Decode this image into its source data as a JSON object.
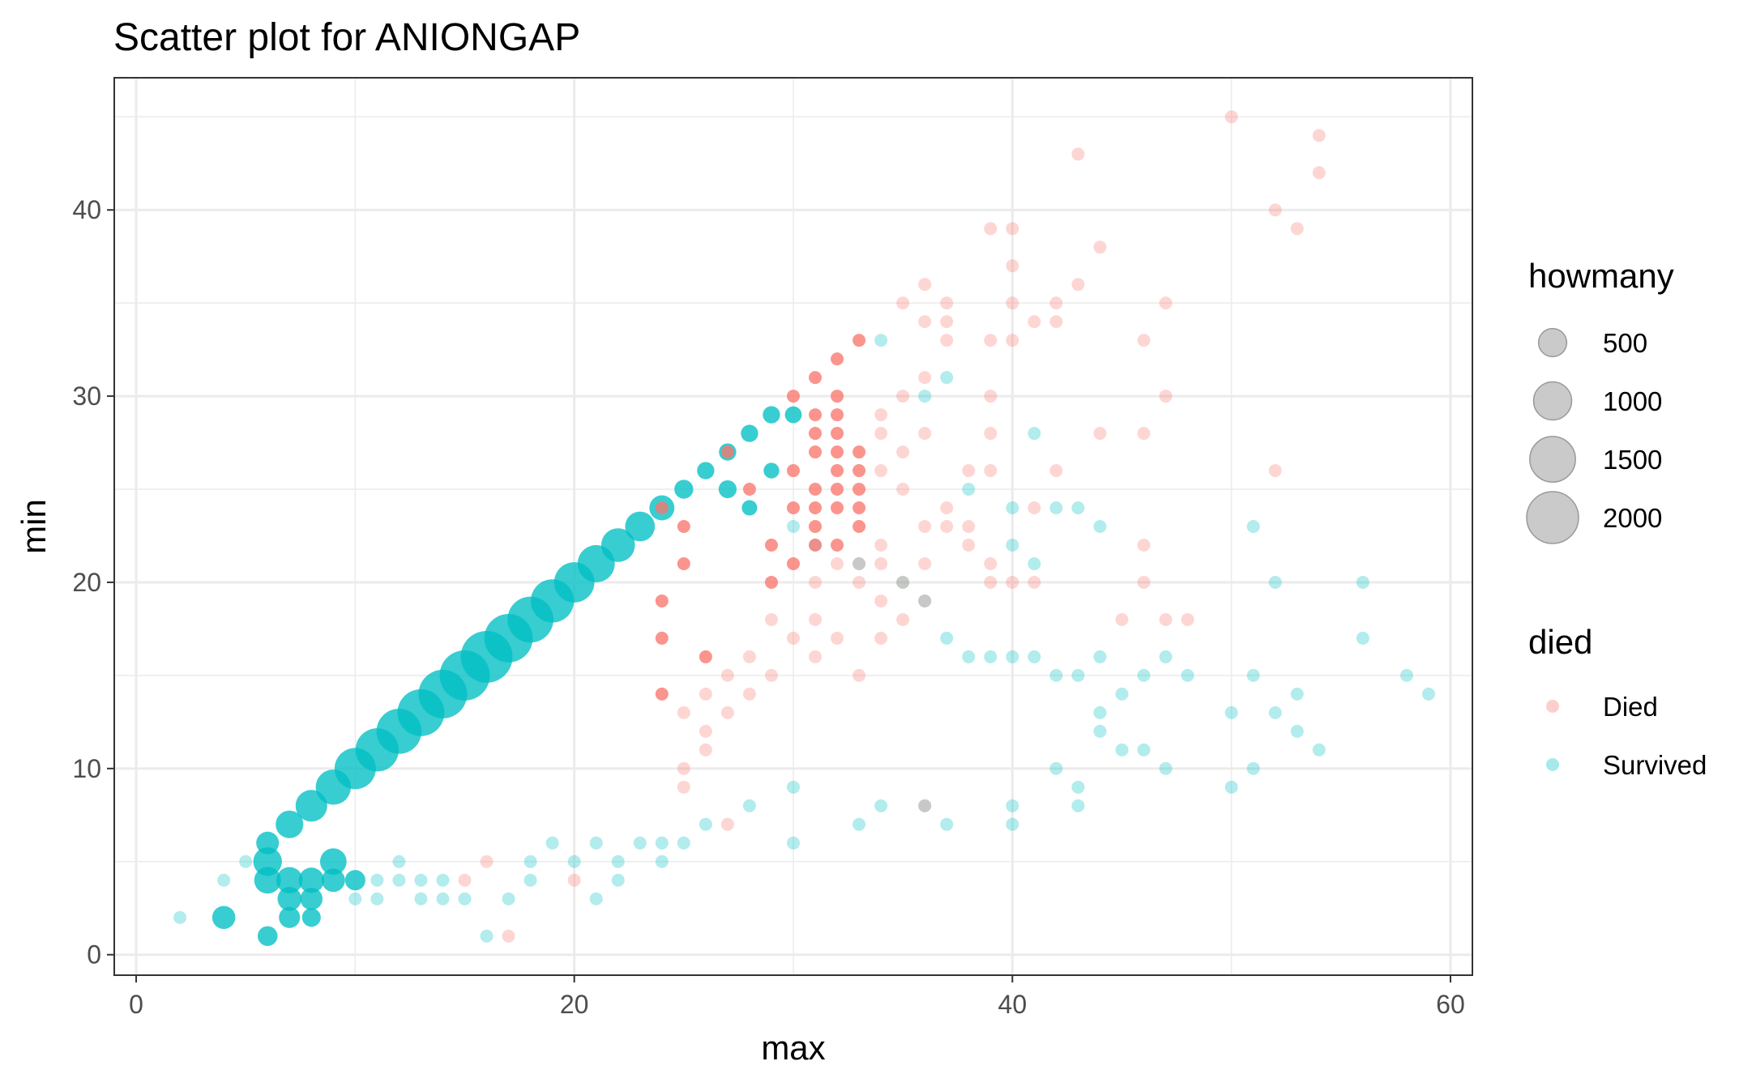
{
  "chart_data": {
    "type": "scatter",
    "title": "Scatter plot for ANIONGAP",
    "xlabel": "max",
    "ylabel": "min",
    "xlim": [
      -1,
      61
    ],
    "ylim": [
      -1.1,
      47.1
    ],
    "x_ticks": [
      0,
      20,
      40,
      60
    ],
    "y_ticks": [
      0,
      10,
      20,
      30,
      40
    ],
    "grid": true,
    "legend_position": "right",
    "colors": {
      "Died": "#F8766D",
      "Survived": "#00BFC4",
      "size_legend": "#B3B3B3"
    },
    "size_legend": {
      "title": "howmany",
      "entries": [
        {
          "label": "500",
          "value": 500
        },
        {
          "label": "1000",
          "value": 1000
        },
        {
          "label": "1500",
          "value": 1500
        },
        {
          "label": "2000",
          "value": 2000
        }
      ]
    },
    "color_legend": {
      "title": "died",
      "entries": [
        {
          "label": "Died",
          "color": "#F8766D"
        },
        {
          "label": "Survived",
          "color": "#00BFC4"
        }
      ]
    },
    "series": [
      {
        "name": "Died",
        "points": [
          [
            50,
            45
          ],
          [
            54,
            44
          ],
          [
            43,
            43
          ],
          [
            54,
            42
          ],
          [
            52,
            40
          ],
          [
            39,
            39
          ],
          [
            40,
            39
          ],
          [
            53,
            39
          ],
          [
            44,
            38
          ],
          [
            40,
            37
          ],
          [
            36,
            36
          ],
          [
            43,
            36
          ],
          [
            35,
            35
          ],
          [
            37,
            35
          ],
          [
            40,
            35
          ],
          [
            42,
            35
          ],
          [
            47,
            35
          ],
          [
            36,
            34
          ],
          [
            37,
            34
          ],
          [
            41,
            34
          ],
          [
            42,
            34
          ],
          [
            33,
            33
          ],
          [
            37,
            33
          ],
          [
            39,
            33
          ],
          [
            40,
            33
          ],
          [
            46,
            33
          ],
          [
            32,
            32
          ],
          [
            31,
            31
          ],
          [
            36,
            31
          ],
          [
            30,
            30
          ],
          [
            32,
            30
          ],
          [
            35,
            30
          ],
          [
            39,
            30
          ],
          [
            47,
            30
          ],
          [
            31,
            29
          ],
          [
            32,
            29
          ],
          [
            34,
            29
          ],
          [
            31,
            28
          ],
          [
            32,
            28
          ],
          [
            34,
            28
          ],
          [
            36,
            28
          ],
          [
            39,
            28
          ],
          [
            44,
            28
          ],
          [
            46,
            28
          ],
          [
            27,
            27
          ],
          [
            31,
            27
          ],
          [
            32,
            27
          ],
          [
            33,
            27
          ],
          [
            35,
            27
          ],
          [
            30,
            26
          ],
          [
            32,
            26
          ],
          [
            33,
            26
          ],
          [
            34,
            26
          ],
          [
            38,
            26
          ],
          [
            39,
            26
          ],
          [
            42,
            26
          ],
          [
            52,
            26
          ],
          [
            28,
            25
          ],
          [
            31,
            25
          ],
          [
            32,
            25
          ],
          [
            33,
            25
          ],
          [
            35,
            25
          ],
          [
            24,
            24
          ],
          [
            30,
            24
          ],
          [
            31,
            24
          ],
          [
            32,
            24
          ],
          [
            33,
            24
          ],
          [
            37,
            24
          ],
          [
            41,
            24
          ],
          [
            25,
            23
          ],
          [
            31,
            23
          ],
          [
            33,
            23
          ],
          [
            36,
            23
          ],
          [
            37,
            23
          ],
          [
            38,
            23
          ],
          [
            29,
            22
          ],
          [
            31,
            22
          ],
          [
            32,
            22
          ],
          [
            34,
            22
          ],
          [
            38,
            22
          ],
          [
            46,
            22
          ],
          [
            25,
            21
          ],
          [
            30,
            21
          ],
          [
            32,
            21
          ],
          [
            33,
            21
          ],
          [
            34,
            21
          ],
          [
            36,
            21
          ],
          [
            39,
            21
          ],
          [
            29,
            20
          ],
          [
            31,
            20
          ],
          [
            33,
            20
          ],
          [
            35,
            20
          ],
          [
            39,
            20
          ],
          [
            40,
            20
          ],
          [
            41,
            20
          ],
          [
            46,
            20
          ],
          [
            24,
            19
          ],
          [
            34,
            19
          ],
          [
            36,
            19
          ],
          [
            29,
            18
          ],
          [
            31,
            18
          ],
          [
            35,
            18
          ],
          [
            45,
            18
          ],
          [
            47,
            18
          ],
          [
            48,
            18
          ],
          [
            24,
            17
          ],
          [
            30,
            17
          ],
          [
            32,
            17
          ],
          [
            34,
            17
          ],
          [
            26,
            16
          ],
          [
            28,
            16
          ],
          [
            31,
            16
          ],
          [
            27,
            15
          ],
          [
            29,
            15
          ],
          [
            33,
            15
          ],
          [
            24,
            14
          ],
          [
            26,
            14
          ],
          [
            28,
            14
          ],
          [
            25,
            13
          ],
          [
            27,
            13
          ],
          [
            26,
            12
          ],
          [
            26,
            11
          ],
          [
            25,
            10
          ],
          [
            25,
            9
          ],
          [
            36,
            8
          ],
          [
            27,
            7
          ],
          [
            16,
            5
          ],
          [
            20,
            4
          ],
          [
            15,
            4
          ],
          [
            17,
            1
          ]
        ]
      },
      {
        "name": "Survived",
        "points": [
          [
            2,
            2
          ],
          [
            4,
            2
          ],
          [
            4,
            4
          ],
          [
            5,
            5
          ],
          [
            6,
            6
          ],
          [
            6,
            1
          ],
          [
            6,
            4
          ],
          [
            7,
            7
          ],
          [
            7,
            3
          ],
          [
            7,
            2
          ],
          [
            8,
            8
          ],
          [
            8,
            2
          ],
          [
            9,
            9
          ],
          [
            10,
            10
          ],
          [
            11,
            11
          ],
          [
            12,
            12
          ],
          [
            13,
            13
          ],
          [
            14,
            14
          ],
          [
            15,
            15
          ],
          [
            16,
            16
          ],
          [
            17,
            17
          ],
          [
            18,
            18
          ],
          [
            19,
            19
          ],
          [
            20,
            20
          ],
          [
            21,
            21
          ],
          [
            22,
            22
          ],
          [
            23,
            23
          ],
          [
            24,
            24
          ],
          [
            25,
            25
          ],
          [
            26,
            26
          ],
          [
            27,
            27
          ],
          [
            28,
            28
          ],
          [
            29,
            29
          ],
          [
            30,
            29
          ],
          [
            29,
            26
          ],
          [
            27,
            25
          ],
          [
            28,
            24
          ],
          [
            30,
            23
          ],
          [
            31,
            22
          ],
          [
            33,
            21
          ],
          [
            35,
            20
          ],
          [
            36,
            19
          ],
          [
            37,
            17
          ],
          [
            38,
            16
          ],
          [
            39,
            16
          ],
          [
            40,
            16
          ],
          [
            41,
            16
          ],
          [
            42,
            15
          ],
          [
            43,
            15
          ],
          [
            44,
            16
          ],
          [
            45,
            14
          ],
          [
            46,
            15
          ],
          [
            47,
            16
          ],
          [
            48,
            15
          ],
          [
            50,
            13
          ],
          [
            51,
            15
          ],
          [
            52,
            13
          ],
          [
            53,
            14
          ],
          [
            56,
            17
          ],
          [
            56,
            20
          ],
          [
            58,
            15
          ],
          [
            59,
            14
          ],
          [
            54,
            11
          ],
          [
            53,
            12
          ],
          [
            51,
            10
          ],
          [
            50,
            9
          ],
          [
            52,
            20
          ],
          [
            51,
            23
          ],
          [
            34,
            33
          ],
          [
            37,
            31
          ],
          [
            36,
            30
          ],
          [
            41,
            28
          ],
          [
            42,
            24
          ],
          [
            43,
            24
          ],
          [
            44,
            23
          ],
          [
            38,
            25
          ],
          [
            40,
            24
          ],
          [
            40,
            22
          ],
          [
            41,
            21
          ],
          [
            44,
            13
          ],
          [
            44,
            12
          ],
          [
            45,
            11
          ],
          [
            46,
            11
          ],
          [
            47,
            10
          ],
          [
            42,
            10
          ],
          [
            43,
            9
          ],
          [
            43,
            8
          ],
          [
            40,
            8
          ],
          [
            40,
            7
          ],
          [
            37,
            7
          ],
          [
            33,
            7
          ],
          [
            36,
            8
          ],
          [
            34,
            8
          ],
          [
            30,
            6
          ],
          [
            30,
            9
          ],
          [
            28,
            8
          ],
          [
            26,
            7
          ],
          [
            24,
            5
          ],
          [
            25,
            6
          ],
          [
            24,
            6
          ],
          [
            22,
            4
          ],
          [
            21,
            3
          ],
          [
            17,
            3
          ],
          [
            16,
            1
          ],
          [
            14,
            3
          ],
          [
            13,
            3
          ],
          [
            12,
            4
          ],
          [
            11,
            3
          ],
          [
            10,
            3
          ],
          [
            10,
            4
          ],
          [
            11,
            4
          ],
          [
            13,
            4
          ],
          [
            14,
            4
          ],
          [
            18,
            4
          ],
          [
            15,
            3
          ],
          [
            9,
            4
          ],
          [
            8,
            3
          ],
          [
            8,
            4
          ],
          [
            7,
            4
          ],
          [
            6,
            5
          ],
          [
            9,
            5
          ],
          [
            12,
            5
          ],
          [
            18,
            5
          ],
          [
            20,
            5
          ],
          [
            19,
            6
          ],
          [
            21,
            6
          ],
          [
            22,
            5
          ],
          [
            23,
            6
          ]
        ]
      }
    ]
  }
}
